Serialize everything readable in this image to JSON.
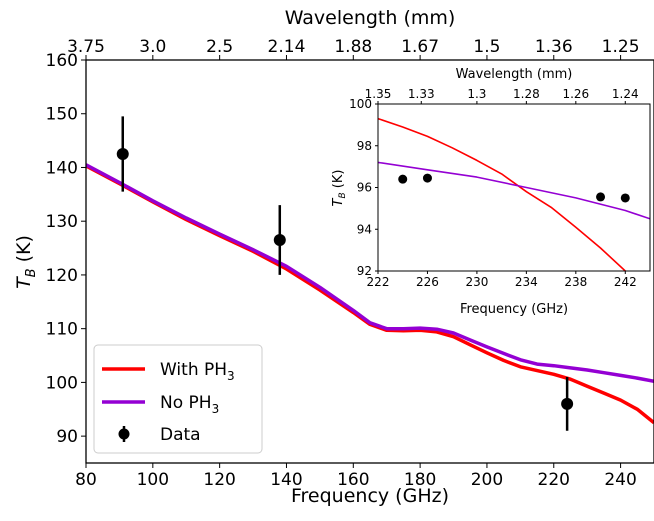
{
  "chart_data": [
    {
      "type": "line",
      "xlabel": "Frequency (GHz)",
      "ylabel_main": "T",
      "ylabel_sub": "B",
      "ylabel_unit": " (K)",
      "x2label": "Wavelength (mm)",
      "xlim": [
        80,
        250
      ],
      "ylim": [
        85,
        160
      ],
      "xticks": [
        80,
        100,
        120,
        140,
        160,
        180,
        200,
        220,
        240
      ],
      "yticks": [
        90,
        100,
        110,
        120,
        130,
        140,
        150,
        160
      ],
      "x2ticks": [
        {
          "label": "3.75",
          "freq": 80
        },
        {
          "label": "3.0",
          "freq": 100
        },
        {
          "label": "2.5",
          "freq": 120
        },
        {
          "label": "2.14",
          "freq": 140
        },
        {
          "label": "1.88",
          "freq": 160
        },
        {
          "label": "1.67",
          "freq": 180
        },
        {
          "label": "1.5",
          "freq": 200
        },
        {
          "label": "1.36",
          "freq": 220
        },
        {
          "label": "1.25",
          "freq": 240
        }
      ],
      "series": [
        {
          "name": "With PH",
          "name_sub": "3",
          "color": "#ff0000",
          "x": [
            80,
            90,
            100,
            110,
            120,
            130,
            140,
            150,
            160,
            165,
            170,
            175,
            180,
            185,
            190,
            195,
            200,
            205,
            210,
            215,
            220,
            225,
            230,
            235,
            240,
            245,
            250
          ],
          "y": [
            140.3,
            137.0,
            133.6,
            130.3,
            127.3,
            124.4,
            121.1,
            117.2,
            113.0,
            110.8,
            109.7,
            109.6,
            109.7,
            109.4,
            108.5,
            107.0,
            105.5,
            104.1,
            102.9,
            102.2,
            101.5,
            100.6,
            99.3,
            98.0,
            96.7,
            95.0,
            92.5
          ]
        },
        {
          "name": "No PH",
          "name_sub": "3",
          "color": "#9400d3",
          "x": [
            80,
            90,
            100,
            110,
            120,
            130,
            140,
            150,
            160,
            165,
            170,
            175,
            180,
            185,
            190,
            195,
            200,
            205,
            210,
            215,
            220,
            225,
            230,
            235,
            240,
            245,
            250
          ],
          "y": [
            140.5,
            137.2,
            133.8,
            130.6,
            127.6,
            124.7,
            121.6,
            117.7,
            113.4,
            111.1,
            110.0,
            110.0,
            110.1,
            109.9,
            109.2,
            107.9,
            106.6,
            105.4,
            104.2,
            103.4,
            103.1,
            102.7,
            102.3,
            101.8,
            101.3,
            100.8,
            100.2
          ]
        }
      ],
      "data_points": {
        "name": "Data",
        "color": "#000000",
        "points": [
          {
            "x": 91,
            "y": 142.5,
            "yerr": 7.0
          },
          {
            "x": 138,
            "y": 126.5,
            "yerr": 6.5
          },
          {
            "x": 224,
            "y": 96.0,
            "yerr": 5.0
          }
        ]
      },
      "legend": "lower-left"
    },
    {
      "type": "line",
      "xlabel": "Frequency (GHz)",
      "ylabel_main": "T",
      "ylabel_sub": "B",
      "ylabel_unit": " (K)",
      "x2label": "Wavelength (mm)",
      "xlim": [
        222,
        244
      ],
      "ylim": [
        92,
        100
      ],
      "xticks": [
        222,
        226,
        230,
        234,
        238,
        242
      ],
      "yticks": [
        92,
        94,
        96,
        98,
        100
      ],
      "x2ticks": [
        {
          "label": "1.35",
          "freq": 222
        },
        {
          "label": "1.33",
          "freq": 225.5
        },
        {
          "label": "1.3",
          "freq": 230
        },
        {
          "label": "1.28",
          "freq": 234
        },
        {
          "label": "1.26",
          "freq": 238
        },
        {
          "label": "1.24",
          "freq": 242
        }
      ],
      "series": [
        {
          "name": "With PH3",
          "color": "#ff0000",
          "x": [
            222,
            224,
            226,
            228,
            230,
            232,
            234,
            236,
            238,
            240,
            242
          ],
          "y": [
            99.3,
            98.9,
            98.45,
            97.9,
            97.3,
            96.65,
            95.8,
            95.05,
            94.1,
            93.1,
            92.0
          ]
        },
        {
          "name": "No PH3",
          "color": "#9400d3",
          "x": [
            222,
            226,
            230,
            234,
            238,
            242,
            244
          ],
          "y": [
            97.2,
            96.85,
            96.5,
            96.0,
            95.5,
            94.9,
            94.5
          ]
        }
      ],
      "data_points": {
        "name": "Data",
        "color": "#000000",
        "points": [
          {
            "x": 224,
            "y": 96.4
          },
          {
            "x": 226,
            "y": 96.45
          },
          {
            "x": 240,
            "y": 95.55
          },
          {
            "x": 242,
            "y": 95.5
          }
        ]
      }
    }
  ]
}
